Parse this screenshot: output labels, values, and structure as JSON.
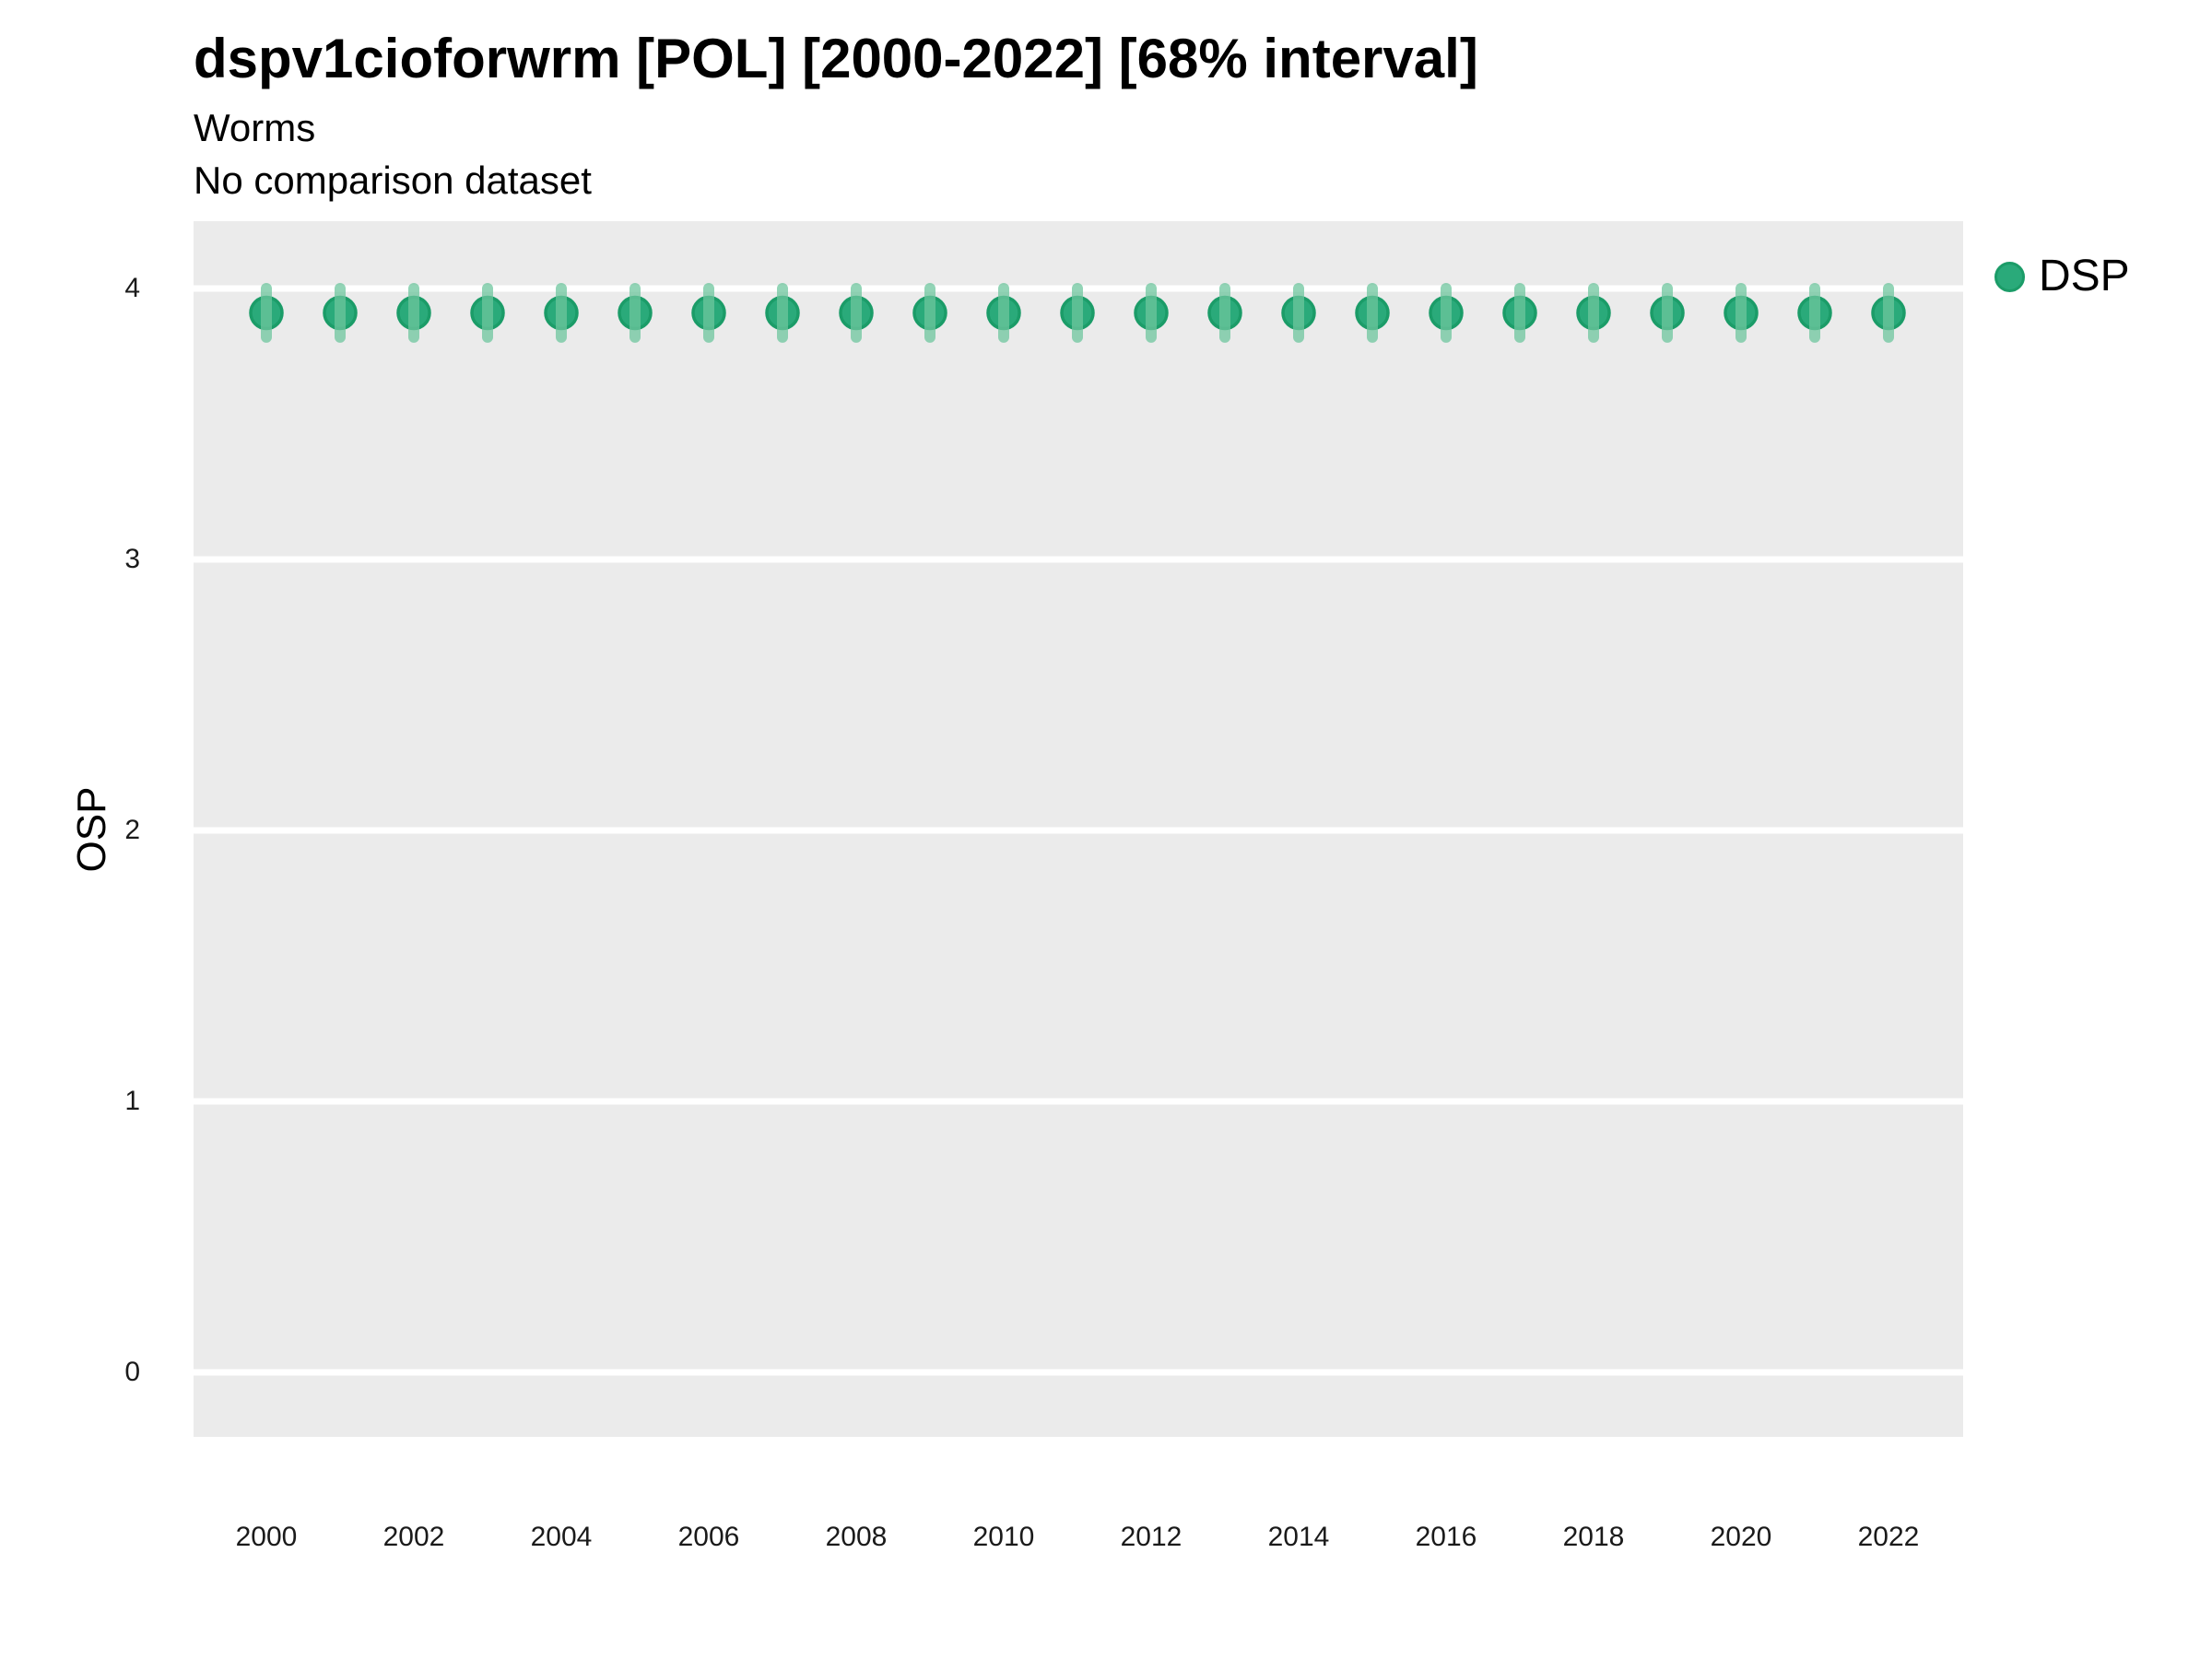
{
  "header": {
    "title": "dspv1cioforwrm [POL] [2000-2022] [68% interval]",
    "subtitle": "Worms",
    "comparison_note": "No comparison dataset"
  },
  "y_axis": {
    "label": "OSP",
    "ticks": [
      4,
      3,
      2,
      1,
      0
    ]
  },
  "x_axis": {
    "ticks": [
      2000,
      2002,
      2004,
      2006,
      2008,
      2010,
      2012,
      2014,
      2016,
      2018,
      2020,
      2022
    ]
  },
  "legend": {
    "position": "right",
    "items": [
      {
        "label": "DSP",
        "symbol": "point-icon"
      }
    ]
  },
  "colors": {
    "panel_background": "#EBEBEB",
    "gridline": "#FFFFFF",
    "point_fill": "#2AAA7A",
    "point_stroke": "#1B9C68",
    "interval_bar": "#6EC69E",
    "text": "#000000"
  },
  "chart_data": {
    "type": "scatter",
    "title": "dspv1cioforwrm [POL] [2000-2022] [68% interval]",
    "subtitle": "Worms",
    "note": "No comparison dataset",
    "xlabel": "",
    "ylabel": "OSP",
    "xlim": [
      1999,
      2023
    ],
    "ylim": [
      -0.24,
      4.25
    ],
    "grid": "horizontal-major-only",
    "legend_position": "right",
    "interval_level": "68%",
    "series": [
      {
        "name": "DSP",
        "x": [
          2000,
          2001,
          2002,
          2003,
          2004,
          2005,
          2006,
          2007,
          2008,
          2009,
          2010,
          2011,
          2012,
          2013,
          2014,
          2015,
          2016,
          2017,
          2018,
          2019,
          2020,
          2021,
          2022
        ],
        "y": [
          3.91,
          3.91,
          3.91,
          3.91,
          3.91,
          3.91,
          3.91,
          3.91,
          3.91,
          3.91,
          3.91,
          3.91,
          3.91,
          3.91,
          3.91,
          3.91,
          3.91,
          3.91,
          3.91,
          3.91,
          3.91,
          3.91,
          3.91
        ],
        "y_low": [
          3.82,
          3.82,
          3.82,
          3.82,
          3.82,
          3.82,
          3.82,
          3.82,
          3.82,
          3.82,
          3.82,
          3.82,
          3.82,
          3.82,
          3.82,
          3.82,
          3.82,
          3.82,
          3.82,
          3.82,
          3.82,
          3.82,
          3.82
        ],
        "y_high": [
          4.0,
          4.0,
          4.0,
          4.0,
          4.0,
          4.0,
          4.0,
          4.0,
          4.0,
          4.0,
          4.0,
          4.0,
          4.0,
          4.0,
          4.0,
          4.0,
          4.0,
          4.0,
          4.0,
          4.0,
          4.0,
          4.0,
          4.0
        ]
      }
    ]
  }
}
